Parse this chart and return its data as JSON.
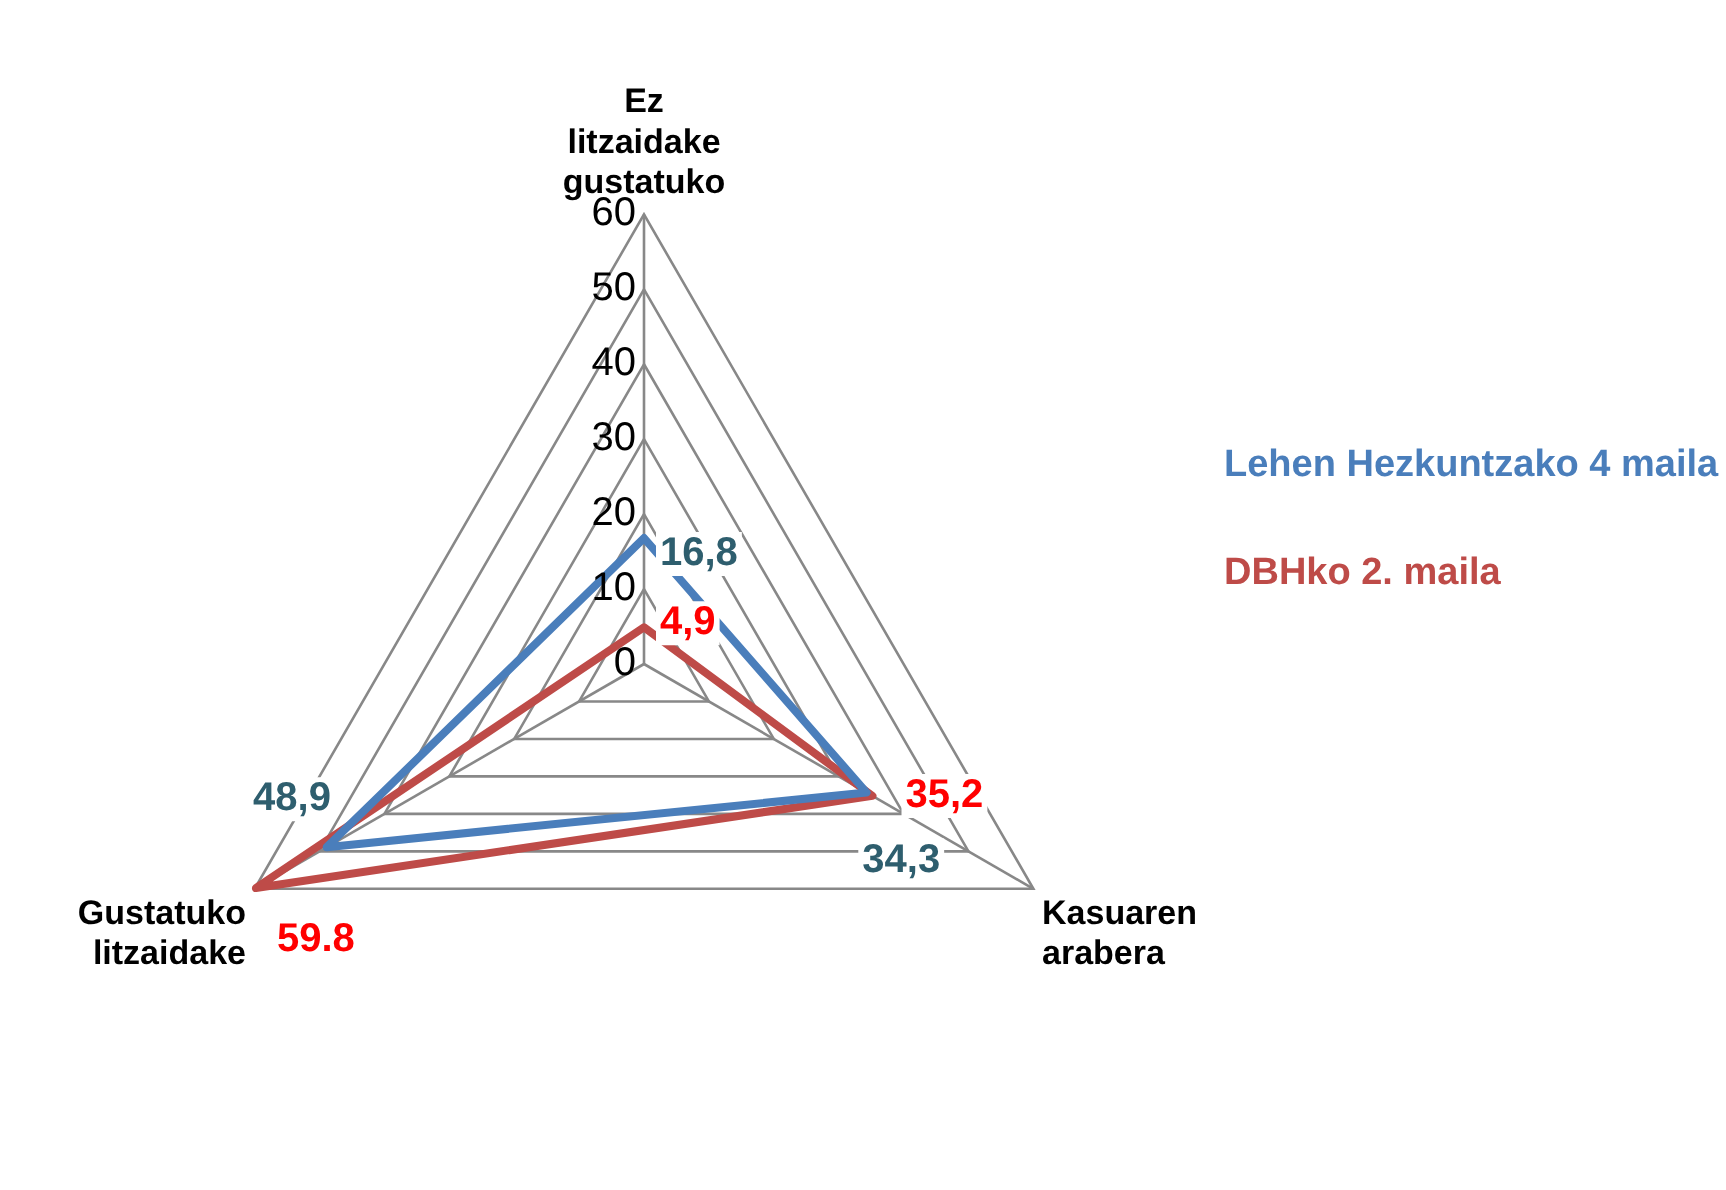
{
  "chart_data": {
    "type": "radar",
    "categories": [
      "Ez litzaidake gustatuko",
      "Kasuaren arabera",
      "Gustatuko litzaidake"
    ],
    "series": [
      {
        "name": "Lehen Hezkuntzako 4 maila",
        "color": "#4a7ebb",
        "values": [
          16.8,
          34.3,
          48.9
        ],
        "value_labels": [
          "16,8",
          "34,3",
          "48,9"
        ]
      },
      {
        "name": "DBHko 2. maila",
        "color": "#be4b48",
        "values": [
          4.9,
          35.2,
          59.8
        ],
        "value_labels": [
          "4,9",
          "35,2",
          "59.8"
        ]
      }
    ],
    "ylim": [
      0,
      60
    ],
    "yticks": [
      0,
      10,
      20,
      30,
      40,
      50,
      60
    ],
    "grid": true,
    "legend": "right",
    "marker": "none"
  }
}
